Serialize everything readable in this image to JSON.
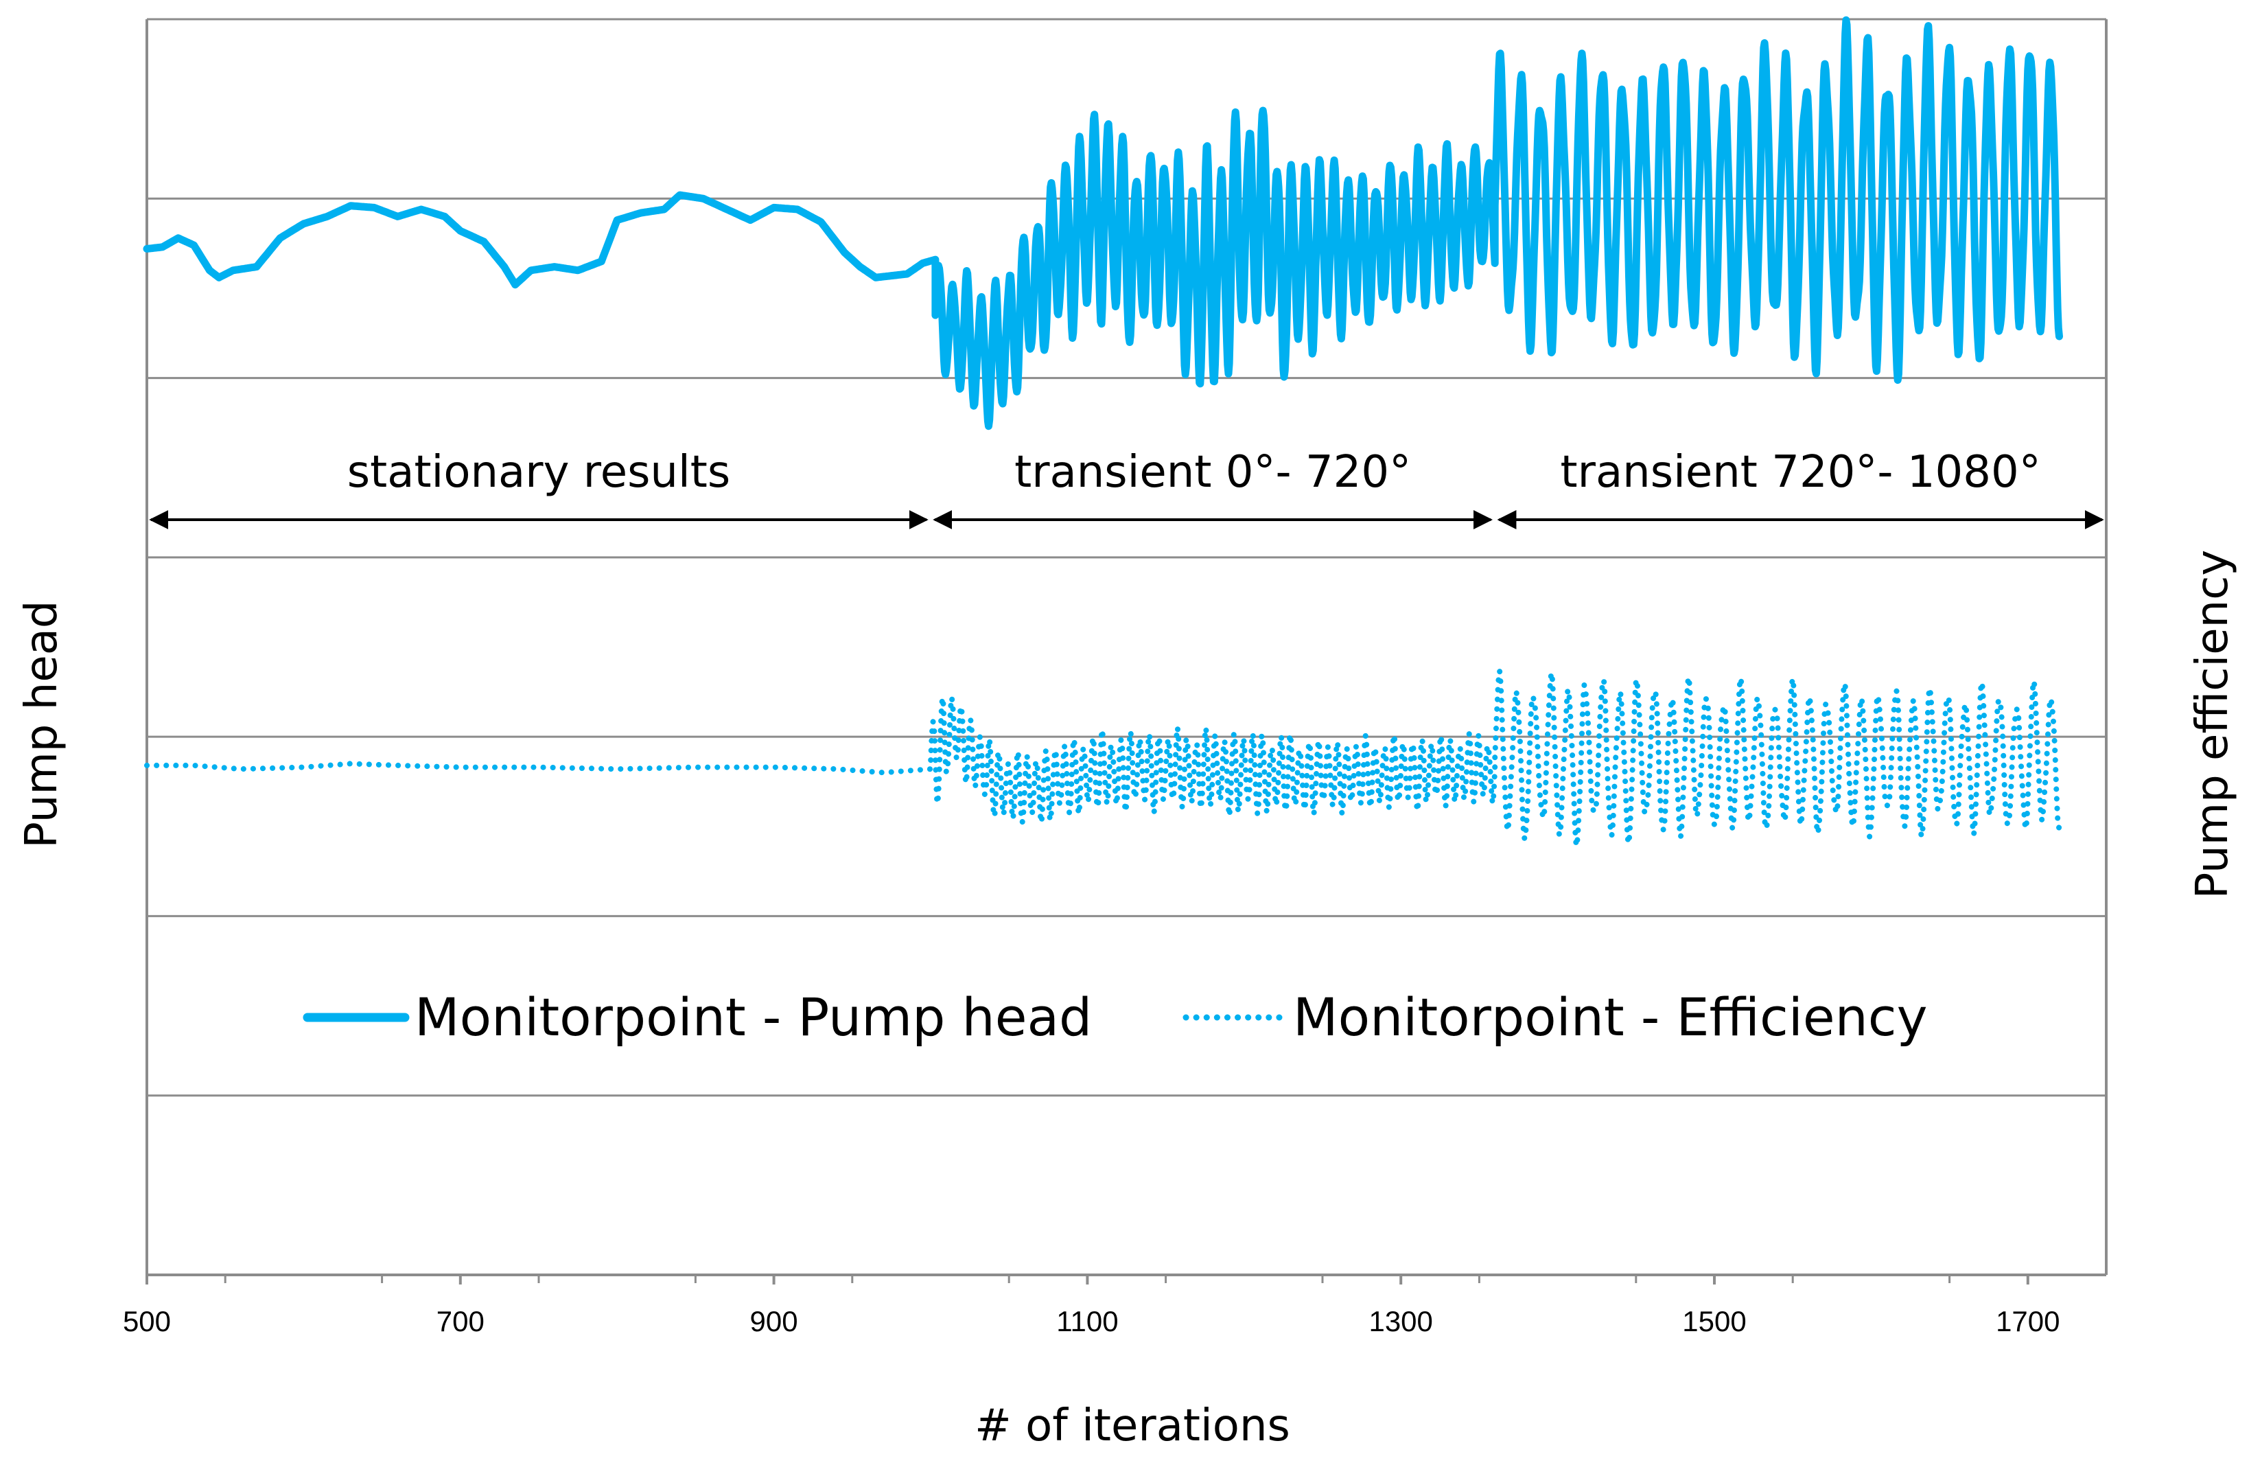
{
  "chart_data": {
    "type": "line",
    "title": "",
    "xlabel": "# of iterations",
    "ylabel_left": "Pump head",
    "ylabel_right": "Pump efficiency",
    "xlim": [
      500,
      1750
    ],
    "x_ticks": [
      500,
      700,
      900,
      1100,
      1300,
      1500,
      1700
    ],
    "y_ticks_shown": false,
    "grid": "horizontal",
    "y_units": "arbitrary (no tick labels)",
    "ylim": [
      0,
      7
    ],
    "series": [
      {
        "name": "Monitorpoint - Pump head",
        "style": "solid",
        "color": "#00b0f0",
        "segments": [
          {
            "label": "stationary results",
            "kind": "smooth",
            "points": [
              [
                500,
                5.72
              ],
              [
                510,
                5.73
              ],
              [
                520,
                5.78
              ],
              [
                530,
                5.74
              ],
              [
                540,
                5.6
              ],
              [
                546,
                5.56
              ],
              [
                555,
                5.6
              ],
              [
                570,
                5.62
              ],
              [
                585,
                5.78
              ],
              [
                600,
                5.86
              ],
              [
                615,
                5.9
              ],
              [
                630,
                5.96
              ],
              [
                645,
                5.95
              ],
              [
                660,
                5.9
              ],
              [
                675,
                5.94
              ],
              [
                690,
                5.9
              ],
              [
                700,
                5.82
              ],
              [
                715,
                5.76
              ],
              [
                728,
                5.62
              ],
              [
                735,
                5.52
              ],
              [
                745,
                5.6
              ],
              [
                760,
                5.62
              ],
              [
                775,
                5.6
              ],
              [
                790,
                5.65
              ],
              [
                800,
                5.88
              ],
              [
                815,
                5.92
              ],
              [
                830,
                5.94
              ],
              [
                840,
                6.02
              ],
              [
                855,
                6.0
              ],
              [
                870,
                5.94
              ],
              [
                885,
                5.88
              ],
              [
                900,
                5.95
              ],
              [
                915,
                5.94
              ],
              [
                930,
                5.87
              ],
              [
                945,
                5.7
              ],
              [
                955,
                5.62
              ],
              [
                965,
                5.56
              ],
              [
                985,
                5.58
              ],
              [
                995,
                5.64
              ],
              [
                1003,
                5.66
              ]
            ]
          },
          {
            "label": "transient 0°- 720°",
            "kind": "oscillating",
            "x_start": 1003,
            "x_end": 1360,
            "period": 9,
            "mid": [
              [
                1003,
                5.35
              ],
              [
                1040,
                5.1
              ],
              [
                1060,
                5.4
              ],
              [
                1080,
                5.7
              ],
              [
                1110,
                5.95
              ],
              [
                1130,
                5.7
              ],
              [
                1150,
                5.8
              ],
              [
                1165,
                5.55
              ],
              [
                1185,
                5.6
              ],
              [
                1195,
                5.8
              ],
              [
                1210,
                5.95
              ],
              [
                1225,
                5.6
              ],
              [
                1250,
                5.75
              ],
              [
                1275,
                5.7
              ],
              [
                1300,
                5.8
              ],
              [
                1330,
                5.85
              ],
              [
                1360,
                5.95
              ]
            ],
            "amplitude": [
              [
                1003,
                0.3
              ],
              [
                1040,
                0.4
              ],
              [
                1060,
                0.45
              ],
              [
                1080,
                0.5
              ],
              [
                1110,
                0.6
              ],
              [
                1150,
                0.55
              ],
              [
                1185,
                0.7
              ],
              [
                1210,
                0.7
              ],
              [
                1250,
                0.5
              ],
              [
                1300,
                0.45
              ],
              [
                1360,
                0.4
              ]
            ]
          },
          {
            "label": "transient 720°- 1080°",
            "kind": "oscillating",
            "x_start": 1360,
            "x_end": 1720,
            "period": 13,
            "mid": [
              [
                1360,
                5.96
              ],
              [
                1720,
                6.0
              ]
            ],
            "amplitude": [
              [
                1360,
                0.78
              ],
              [
                1460,
                0.85
              ],
              [
                1530,
                0.85
              ],
              [
                1600,
                0.95
              ],
              [
                1720,
                0.88
              ]
            ]
          }
        ]
      },
      {
        "name": "Monitorpoint - Efficiency",
        "style": "dotted",
        "color": "#00b0f0",
        "segments": [
          {
            "label": "stationary results",
            "kind": "smooth",
            "points": [
              [
                500,
                2.84
              ],
              [
                530,
                2.84
              ],
              [
                560,
                2.82
              ],
              [
                600,
                2.83
              ],
              [
                630,
                2.85
              ],
              [
                660,
                2.84
              ],
              [
                700,
                2.83
              ],
              [
                750,
                2.83
              ],
              [
                800,
                2.82
              ],
              [
                850,
                2.83
              ],
              [
                900,
                2.83
              ],
              [
                940,
                2.82
              ],
              [
                970,
                2.8
              ],
              [
                1000,
                2.82
              ]
            ]
          },
          {
            "label": "transient 0°- 720°",
            "kind": "oscillating",
            "x_start": 1000,
            "x_end": 1360,
            "period": 6,
            "mid": [
              [
                1000,
                2.85
              ],
              [
                1015,
                3.05
              ],
              [
                1040,
                2.75
              ],
              [
                1060,
                2.7
              ],
              [
                1100,
                2.8
              ],
              [
                1150,
                2.82
              ],
              [
                1200,
                2.8
              ],
              [
                1250,
                2.78
              ],
              [
                1300,
                2.8
              ],
              [
                1360,
                2.82
              ]
            ],
            "amplitude": [
              [
                1000,
                0.3
              ],
              [
                1020,
                0.2
              ],
              [
                1050,
                0.2
              ],
              [
                1100,
                0.22
              ],
              [
                1160,
                0.22
              ],
              [
                1200,
                0.24
              ],
              [
                1260,
                0.2
              ],
              [
                1360,
                0.2
              ]
            ]
          },
          {
            "label": "transient 720°- 1080°",
            "kind": "oscillating",
            "x_start": 1360,
            "x_end": 1720,
            "period": 11,
            "mid": [
              [
                1360,
                2.88
              ],
              [
                1720,
                2.87
              ]
            ],
            "amplitude": [
              [
                1360,
                0.45
              ],
              [
                1420,
                0.48
              ],
              [
                1500,
                0.42
              ],
              [
                1720,
                0.41
              ]
            ]
          }
        ]
      }
    ],
    "annotations": [
      {
        "text": "stationary results",
        "x_from": 500,
        "x_to": 1000,
        "y": 4.21
      },
      {
        "text": "transient 0°- 720°",
        "x_from": 1000,
        "x_to": 1360,
        "y": 4.21
      },
      {
        "text": "transient 720°- 1080°",
        "x_from": 1360,
        "x_to": 1750,
        "y": 4.21
      }
    ],
    "legend": {
      "placement": "lower-center",
      "entries": [
        {
          "label": "Monitorpoint - Pump head",
          "style": "solid"
        },
        {
          "label": "Monitorpoint - Efficiency",
          "style": "dotted"
        }
      ]
    }
  }
}
